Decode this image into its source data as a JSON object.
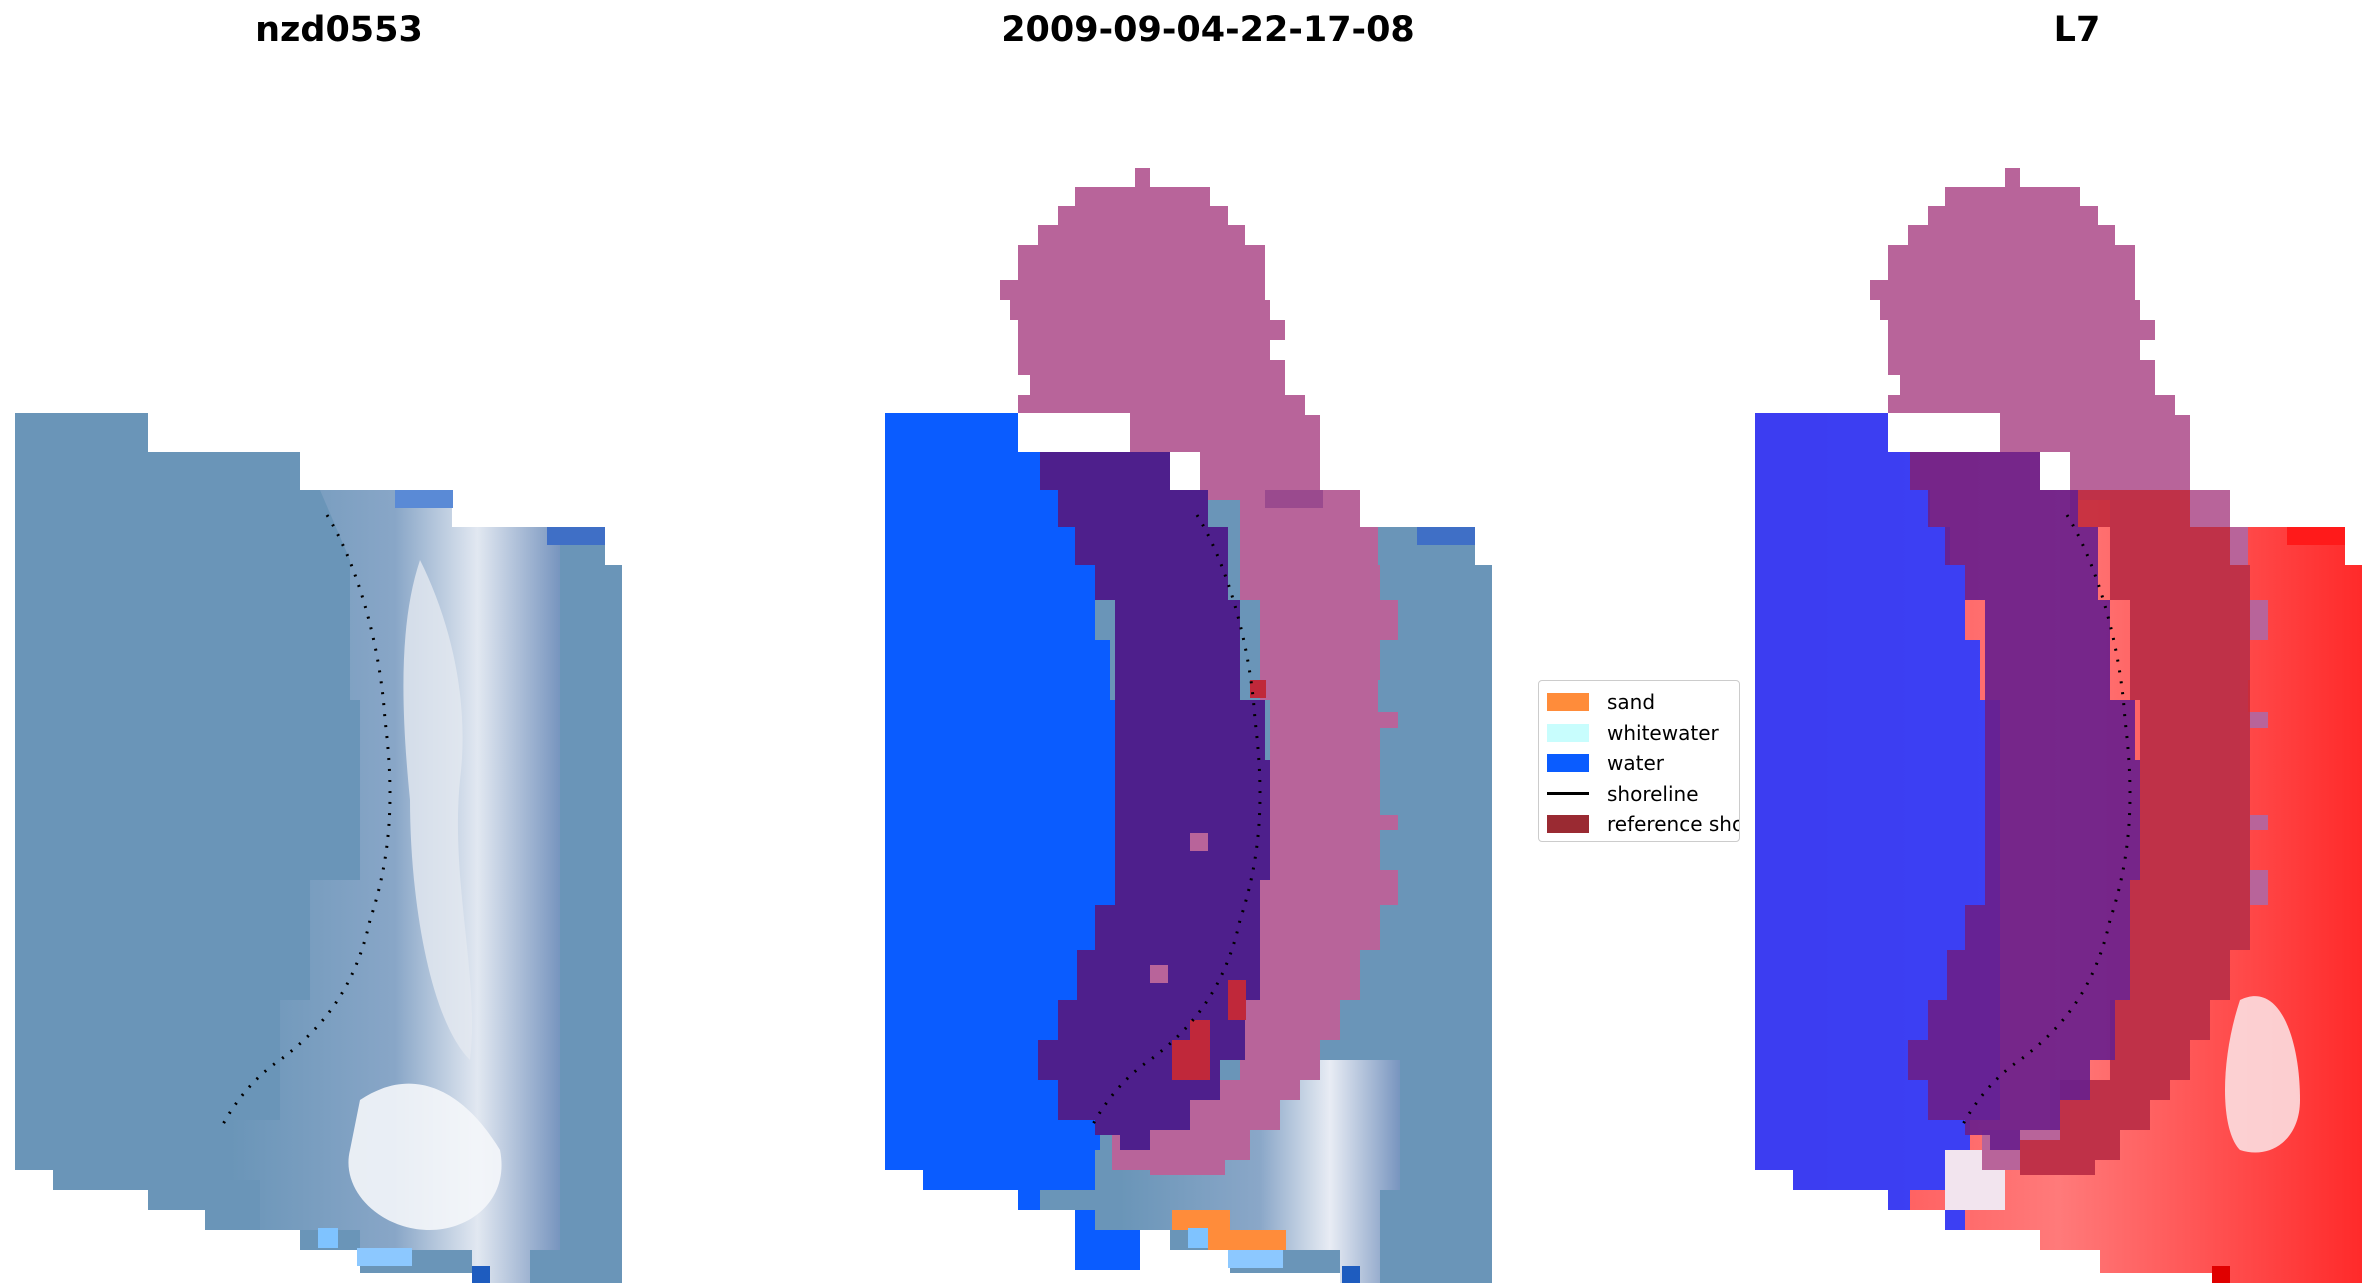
{
  "titles": {
    "left": "nzd0553",
    "center": "2009-09-04-22-17-08",
    "right": "L7"
  },
  "legend": {
    "items": [
      {
        "label": "sand",
        "color": "#ff8c3a",
        "kind": "patch"
      },
      {
        "label": "whitewater",
        "color": "#c8fdfd",
        "kind": "patch"
      },
      {
        "label": "water",
        "color": "#0a5cff",
        "kind": "patch"
      },
      {
        "label": "shoreline",
        "color": "#000000",
        "kind": "line"
      },
      {
        "label": "reference sho",
        "color": "#9a2a32",
        "kind": "patch"
      }
    ]
  },
  "colors": {
    "water_class": "#0a5cff",
    "buffer": "#b8649a",
    "inner_band": "#4e1f8c",
    "reference": "#c0283a",
    "sand": "#ff8c3a",
    "imagery_base": "#6a95b8",
    "imagery_surf": "#dfe6ee",
    "index_water": "#2b3cff",
    "index_land": "#ff3a3a"
  }
}
